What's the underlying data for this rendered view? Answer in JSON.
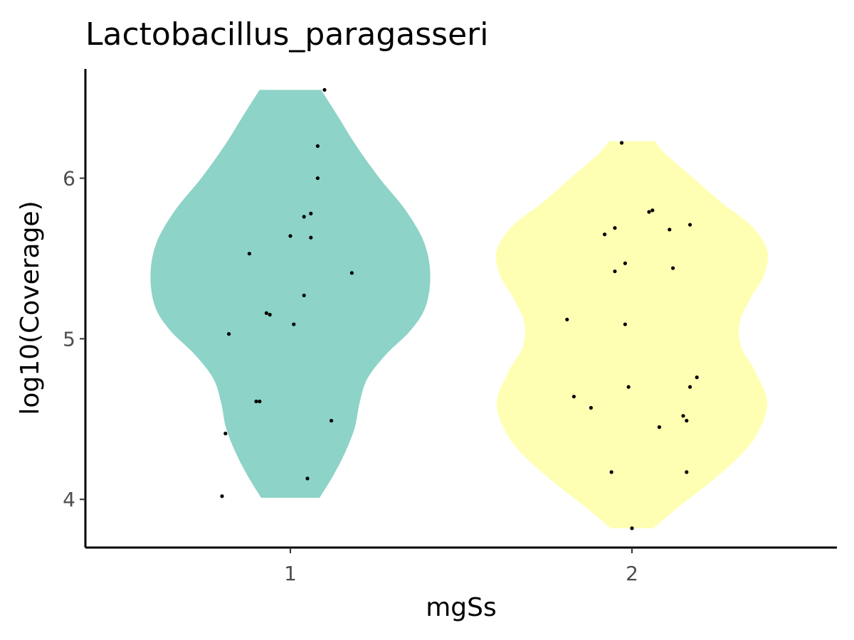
{
  "chart_data": {
    "type": "violin",
    "title": "Lactobacillus_paragasseri",
    "xlabel": "mgSs",
    "ylabel": "log10(Coverage)",
    "categories": [
      "1",
      "2"
    ],
    "y_ticks": [
      4,
      5,
      6
    ],
    "y_tick_labels": [
      "4",
      "5",
      "6"
    ],
    "ylim": [
      3.7,
      6.68
    ],
    "grid": false,
    "legend": "none",
    "colors": {
      "1": "#8dd3c7",
      "2": "#ffffb3",
      "points": "#000000"
    },
    "groups": [
      {
        "category": "1",
        "color": "#8dd3c7",
        "min": 4.01,
        "max": 6.55,
        "density": [
          {
            "y": 4.01,
            "w": 0.19
          },
          {
            "y": 4.15,
            "w": 0.28
          },
          {
            "y": 4.3,
            "w": 0.36
          },
          {
            "y": 4.45,
            "w": 0.42
          },
          {
            "y": 4.6,
            "w": 0.45
          },
          {
            "y": 4.75,
            "w": 0.5
          },
          {
            "y": 4.9,
            "w": 0.62
          },
          {
            "y": 5.05,
            "w": 0.78
          },
          {
            "y": 5.2,
            "w": 0.88
          },
          {
            "y": 5.4,
            "w": 0.91
          },
          {
            "y": 5.6,
            "w": 0.87
          },
          {
            "y": 5.8,
            "w": 0.75
          },
          {
            "y": 6.0,
            "w": 0.58
          },
          {
            "y": 6.2,
            "w": 0.43
          },
          {
            "y": 6.4,
            "w": 0.3
          },
          {
            "y": 6.55,
            "w": 0.2
          }
        ],
        "points": [
          {
            "x": 1.1,
            "y": 6.55
          },
          {
            "x": 1.08,
            "y": 6.2
          },
          {
            "x": 1.08,
            "y": 6.0
          },
          {
            "x": 1.06,
            "y": 5.78
          },
          {
            "x": 1.04,
            "y": 5.76
          },
          {
            "x": 1.0,
            "y": 5.64
          },
          {
            "x": 1.06,
            "y": 5.63
          },
          {
            "x": 0.88,
            "y": 5.53
          },
          {
            "x": 1.18,
            "y": 5.41
          },
          {
            "x": 1.04,
            "y": 5.27
          },
          {
            "x": 0.93,
            "y": 5.16
          },
          {
            "x": 0.94,
            "y": 5.15
          },
          {
            "x": 1.01,
            "y": 5.09
          },
          {
            "x": 0.82,
            "y": 5.03
          },
          {
            "x": 0.9,
            "y": 4.61
          },
          {
            "x": 0.91,
            "y": 4.61
          },
          {
            "x": 1.12,
            "y": 4.49
          },
          {
            "x": 0.81,
            "y": 4.41
          },
          {
            "x": 1.05,
            "y": 4.13
          },
          {
            "x": 0.8,
            "y": 4.02
          }
        ]
      },
      {
        "category": "2",
        "color": "#ffffb3",
        "min": 3.82,
        "max": 6.23,
        "density": [
          {
            "y": 3.82,
            "w": 0.14
          },
          {
            "y": 3.95,
            "w": 0.3
          },
          {
            "y": 4.1,
            "w": 0.5
          },
          {
            "y": 4.25,
            "w": 0.68
          },
          {
            "y": 4.4,
            "w": 0.81
          },
          {
            "y": 4.6,
            "w": 0.88
          },
          {
            "y": 4.8,
            "w": 0.8
          },
          {
            "y": 4.95,
            "w": 0.71
          },
          {
            "y": 5.1,
            "w": 0.7
          },
          {
            "y": 5.25,
            "w": 0.77
          },
          {
            "y": 5.4,
            "w": 0.86
          },
          {
            "y": 5.55,
            "w": 0.88
          },
          {
            "y": 5.7,
            "w": 0.78
          },
          {
            "y": 5.85,
            "w": 0.58
          },
          {
            "y": 6.0,
            "w": 0.4
          },
          {
            "y": 6.15,
            "w": 0.22
          },
          {
            "y": 6.23,
            "w": 0.15
          }
        ],
        "points": [
          {
            "x": 1.97,
            "y": 6.22
          },
          {
            "x": 2.05,
            "y": 5.79
          },
          {
            "x": 2.06,
            "y": 5.8
          },
          {
            "x": 2.17,
            "y": 5.71
          },
          {
            "x": 1.95,
            "y": 5.69
          },
          {
            "x": 2.11,
            "y": 5.68
          },
          {
            "x": 1.92,
            "y": 5.65
          },
          {
            "x": 1.98,
            "y": 5.47
          },
          {
            "x": 2.12,
            "y": 5.44
          },
          {
            "x": 1.95,
            "y": 5.42
          },
          {
            "x": 1.81,
            "y": 5.12
          },
          {
            "x": 1.98,
            "y": 5.09
          },
          {
            "x": 2.19,
            "y": 4.76
          },
          {
            "x": 1.99,
            "y": 4.7
          },
          {
            "x": 2.17,
            "y": 4.7
          },
          {
            "x": 1.83,
            "y": 4.64
          },
          {
            "x": 1.88,
            "y": 4.57
          },
          {
            "x": 2.15,
            "y": 4.52
          },
          {
            "x": 2.16,
            "y": 4.49
          },
          {
            "x": 2.08,
            "y": 4.45
          },
          {
            "x": 1.94,
            "y": 4.17
          },
          {
            "x": 2.16,
            "y": 4.17
          },
          {
            "x": 2.0,
            "y": 3.82
          }
        ]
      }
    ]
  }
}
